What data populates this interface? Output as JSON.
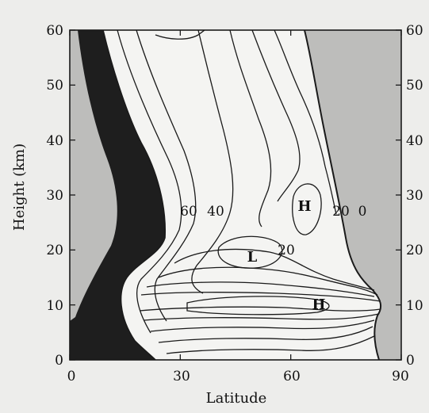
{
  "chart_data": {
    "type": "contour",
    "xlabel": "Latitude",
    "ylabel": "Height (km)",
    "xlim": [
      0,
      90
    ],
    "ylim": [
      0,
      60
    ],
    "x_ticks": [
      "0",
      "30",
      "60",
      "90"
    ],
    "y_ticks_left": [
      "0",
      "10",
      "20",
      "30",
      "40",
      "50",
      "60"
    ],
    "y_ticks_right": [
      "0",
      "10",
      "20",
      "30",
      "40",
      "50",
      "60"
    ],
    "contour_labels": [
      {
        "text": "60",
        "lat": 36,
        "height": 27
      },
      {
        "text": "40",
        "lat": 43,
        "height": 27
      },
      {
        "text": "20",
        "lat": 66,
        "height": 20
      },
      {
        "text": "20",
        "lat": 77,
        "height": 27
      },
      {
        "text": "0",
        "lat": 84,
        "height": 27
      }
    ],
    "extrema": [
      {
        "text": "H",
        "lat": 69,
        "height": 28
      },
      {
        "text": "L",
        "lat": 55,
        "height": 19
      },
      {
        "text": "H",
        "lat": 73,
        "height": 10
      }
    ],
    "shading": {
      "dark_region": "equatorial band (0 to about 20 degrees latitude)",
      "light_region": "polar band (poleward of the 0 contour)"
    },
    "colors": {
      "background": "#ededeb",
      "plot_area": "#f4f4f2",
      "light_shade": "#bdbdbb",
      "dark_shade": "#1e1e1e",
      "line": "#1a1a1a"
    }
  }
}
